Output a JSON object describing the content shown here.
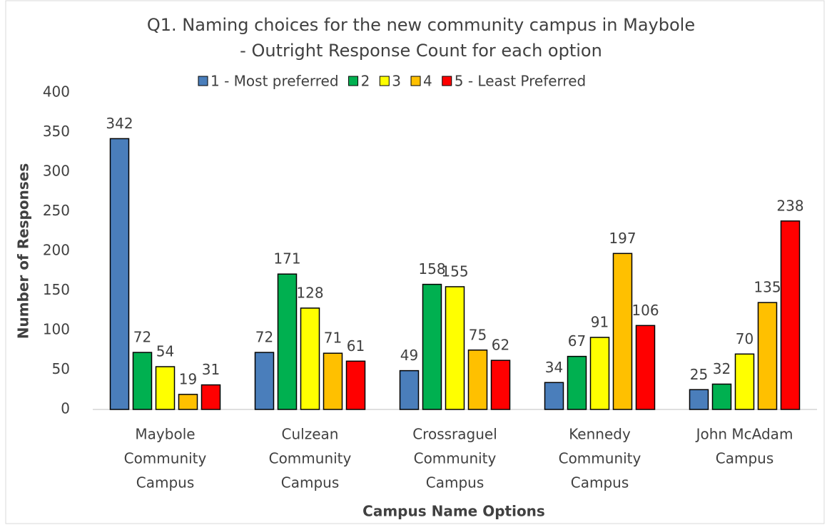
{
  "chart_data": {
    "type": "bar",
    "title": [
      "Q1. Naming choices for the new community campus in Maybole",
      "- Outright Response Count for each option"
    ],
    "x_label": "Campus Name Options",
    "y_label": "Number of Responses",
    "categories": [
      [
        "Maybole",
        "Community",
        "Campus"
      ],
      [
        "Culzean",
        "Community",
        "Campus"
      ],
      [
        "Crossraguel",
        "Community",
        "Campus"
      ],
      [
        "Kennedy",
        "Community",
        "Campus"
      ],
      [
        "John McAdam",
        "Campus"
      ]
    ],
    "series": [
      {
        "name": "1 - Most preferred",
        "color": "#4a7ebb",
        "values": [
          342,
          72,
          49,
          34,
          25
        ]
      },
      {
        "name": "2",
        "color": "#00b050",
        "values": [
          72,
          171,
          158,
          67,
          32
        ]
      },
      {
        "name": "3",
        "color": "#ffff00",
        "values": [
          54,
          128,
          155,
          91,
          70
        ]
      },
      {
        "name": "4",
        "color": "#ffc000",
        "values": [
          19,
          71,
          75,
          197,
          135
        ]
      },
      {
        "name": "5 - Least Preferred",
        "color": "#ff0000",
        "values": [
          31,
          61,
          62,
          106,
          238
        ]
      }
    ],
    "ylim": [
      0,
      400
    ],
    "yticks": [
      0,
      50,
      100,
      150,
      200,
      250,
      300,
      350,
      400
    ],
    "legend": "top",
    "grid": false
  }
}
